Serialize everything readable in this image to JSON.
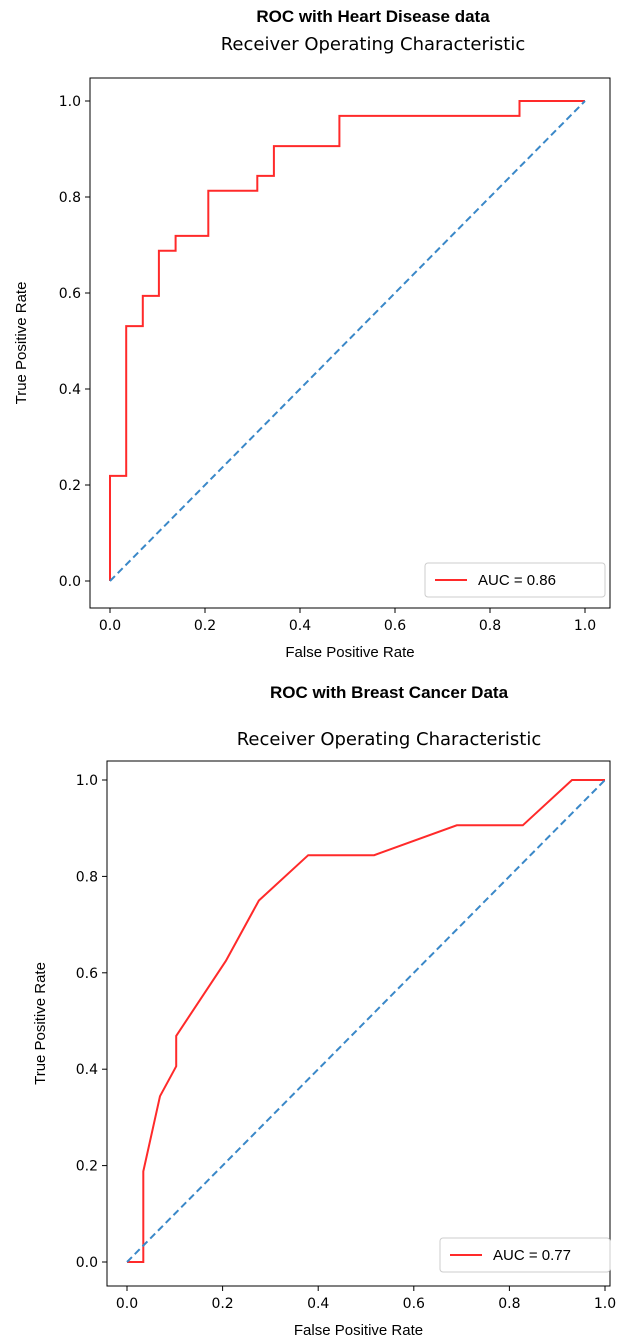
{
  "chart_data": [
    {
      "type": "line",
      "suptitle": "ROC with Heart Disease data",
      "title": "Receiver Operating Characteristic",
      "xlabel": "False Positive Rate",
      "ylabel": "True Positive Rate",
      "xlim": [
        0,
        1
      ],
      "ylim": [
        0,
        1
      ],
      "xticks": [
        "0.0",
        "0.2",
        "0.4",
        "0.6",
        "0.8",
        "1.0"
      ],
      "yticks": [
        "0.0",
        "0.2",
        "0.4",
        "0.6",
        "0.8",
        "1.0"
      ],
      "grid": false,
      "legend_position": "lower-right",
      "series": [
        {
          "name": "AUC = 0.86",
          "color": "#ff2a2a",
          "style": "solid",
          "x": [
            0,
            0,
            0.034,
            0.034,
            0.069,
            0.069,
            0.103,
            0.103,
            0.138,
            0.138,
            0.207,
            0.207,
            0.31,
            0.31,
            0.345,
            0.345,
            0.483,
            0.483,
            0.862,
            0.862,
            1.0
          ],
          "y": [
            0,
            0.219,
            0.219,
            0.531,
            0.531,
            0.594,
            0.594,
            0.688,
            0.688,
            0.719,
            0.719,
            0.813,
            0.813,
            0.844,
            0.844,
            0.906,
            0.906,
            0.969,
            0.969,
            1.0,
            1.0
          ]
        },
        {
          "name": "",
          "color": "#3a88c8",
          "style": "dashed",
          "x": [
            0,
            1
          ],
          "y": [
            0,
            1
          ]
        }
      ]
    },
    {
      "type": "line",
      "suptitle": "ROC with Breast Cancer Data",
      "title": "Receiver Operating Characteristic",
      "xlabel": "False Positive Rate",
      "ylabel": "True Positive Rate",
      "xlim": [
        0,
        1
      ],
      "ylim": [
        0,
        1
      ],
      "xticks": [
        "0.0",
        "0.2",
        "0.4",
        "0.6",
        "0.8",
        "1.0"
      ],
      "yticks": [
        "0.0",
        "0.2",
        "0.4",
        "0.6",
        "0.8",
        "1.0"
      ],
      "grid": false,
      "legend_position": "lower-right",
      "series": [
        {
          "name": "AUC = 0.77",
          "color": "#ff2a2a",
          "style": "solid",
          "x": [
            0,
            0.034,
            0.034,
            0.069,
            0.103,
            0.103,
            0.207,
            0.276,
            0.379,
            0.517,
            0.69,
            0.828,
            0.931,
            1.0
          ],
          "y": [
            0,
            0,
            0.188,
            0.344,
            0.406,
            0.469,
            0.625,
            0.75,
            0.844,
            0.844,
            0.906,
            0.906,
            1.0,
            1.0
          ]
        },
        {
          "name": "",
          "color": "#3a88c8",
          "style": "dashed",
          "x": [
            0,
            1
          ],
          "y": [
            0,
            1
          ]
        }
      ]
    }
  ]
}
